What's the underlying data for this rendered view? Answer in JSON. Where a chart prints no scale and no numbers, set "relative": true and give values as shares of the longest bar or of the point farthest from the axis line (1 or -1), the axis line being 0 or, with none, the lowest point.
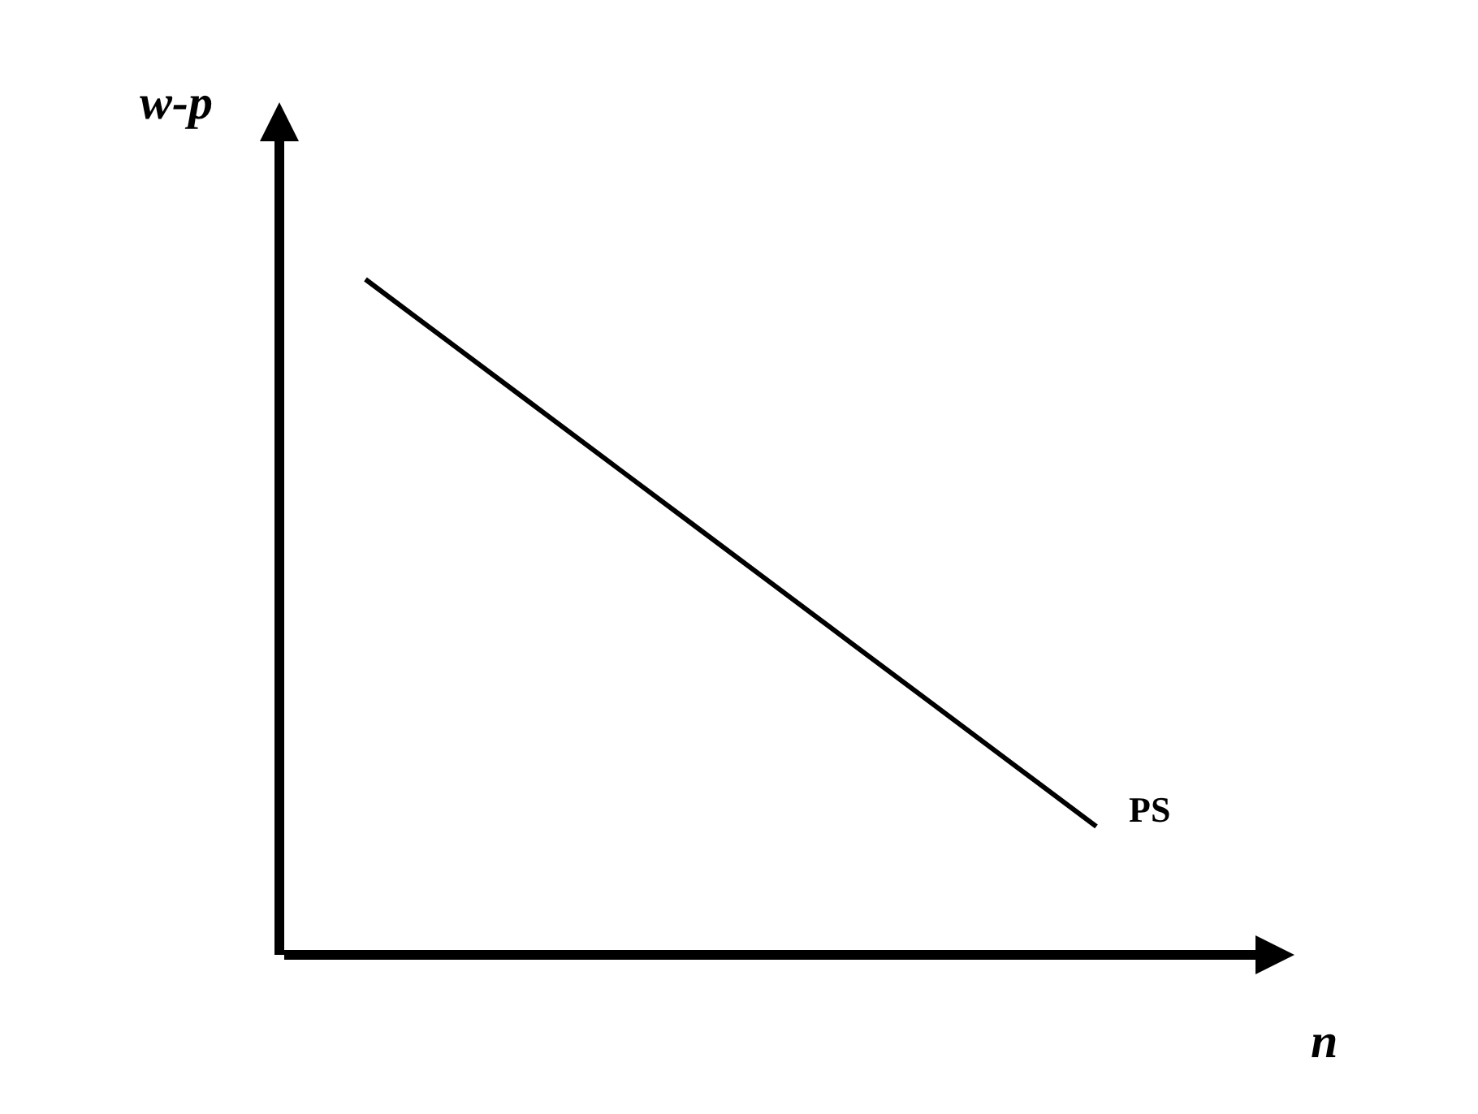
{
  "chart_data": {
    "type": "line",
    "relative": true,
    "xlabel": "n",
    "ylabel": "w-p",
    "categories": [
      null,
      null,
      null,
      null,
      null,
      null,
      null,
      null,
      null,
      null,
      null,
      null,
      null
    ],
    "series": [
      {
        "name": "PS",
        "color": "#000000",
        "values": [
          null,
          1,
          0.91,
          0.82,
          0.73,
          0.64,
          0.55,
          0.46,
          0.37,
          0.28,
          0.19,
          null,
          null
        ]
      }
    ],
    "grid": false,
    "legend": false,
    "marker": "none",
    "line_style": "solid"
  }
}
